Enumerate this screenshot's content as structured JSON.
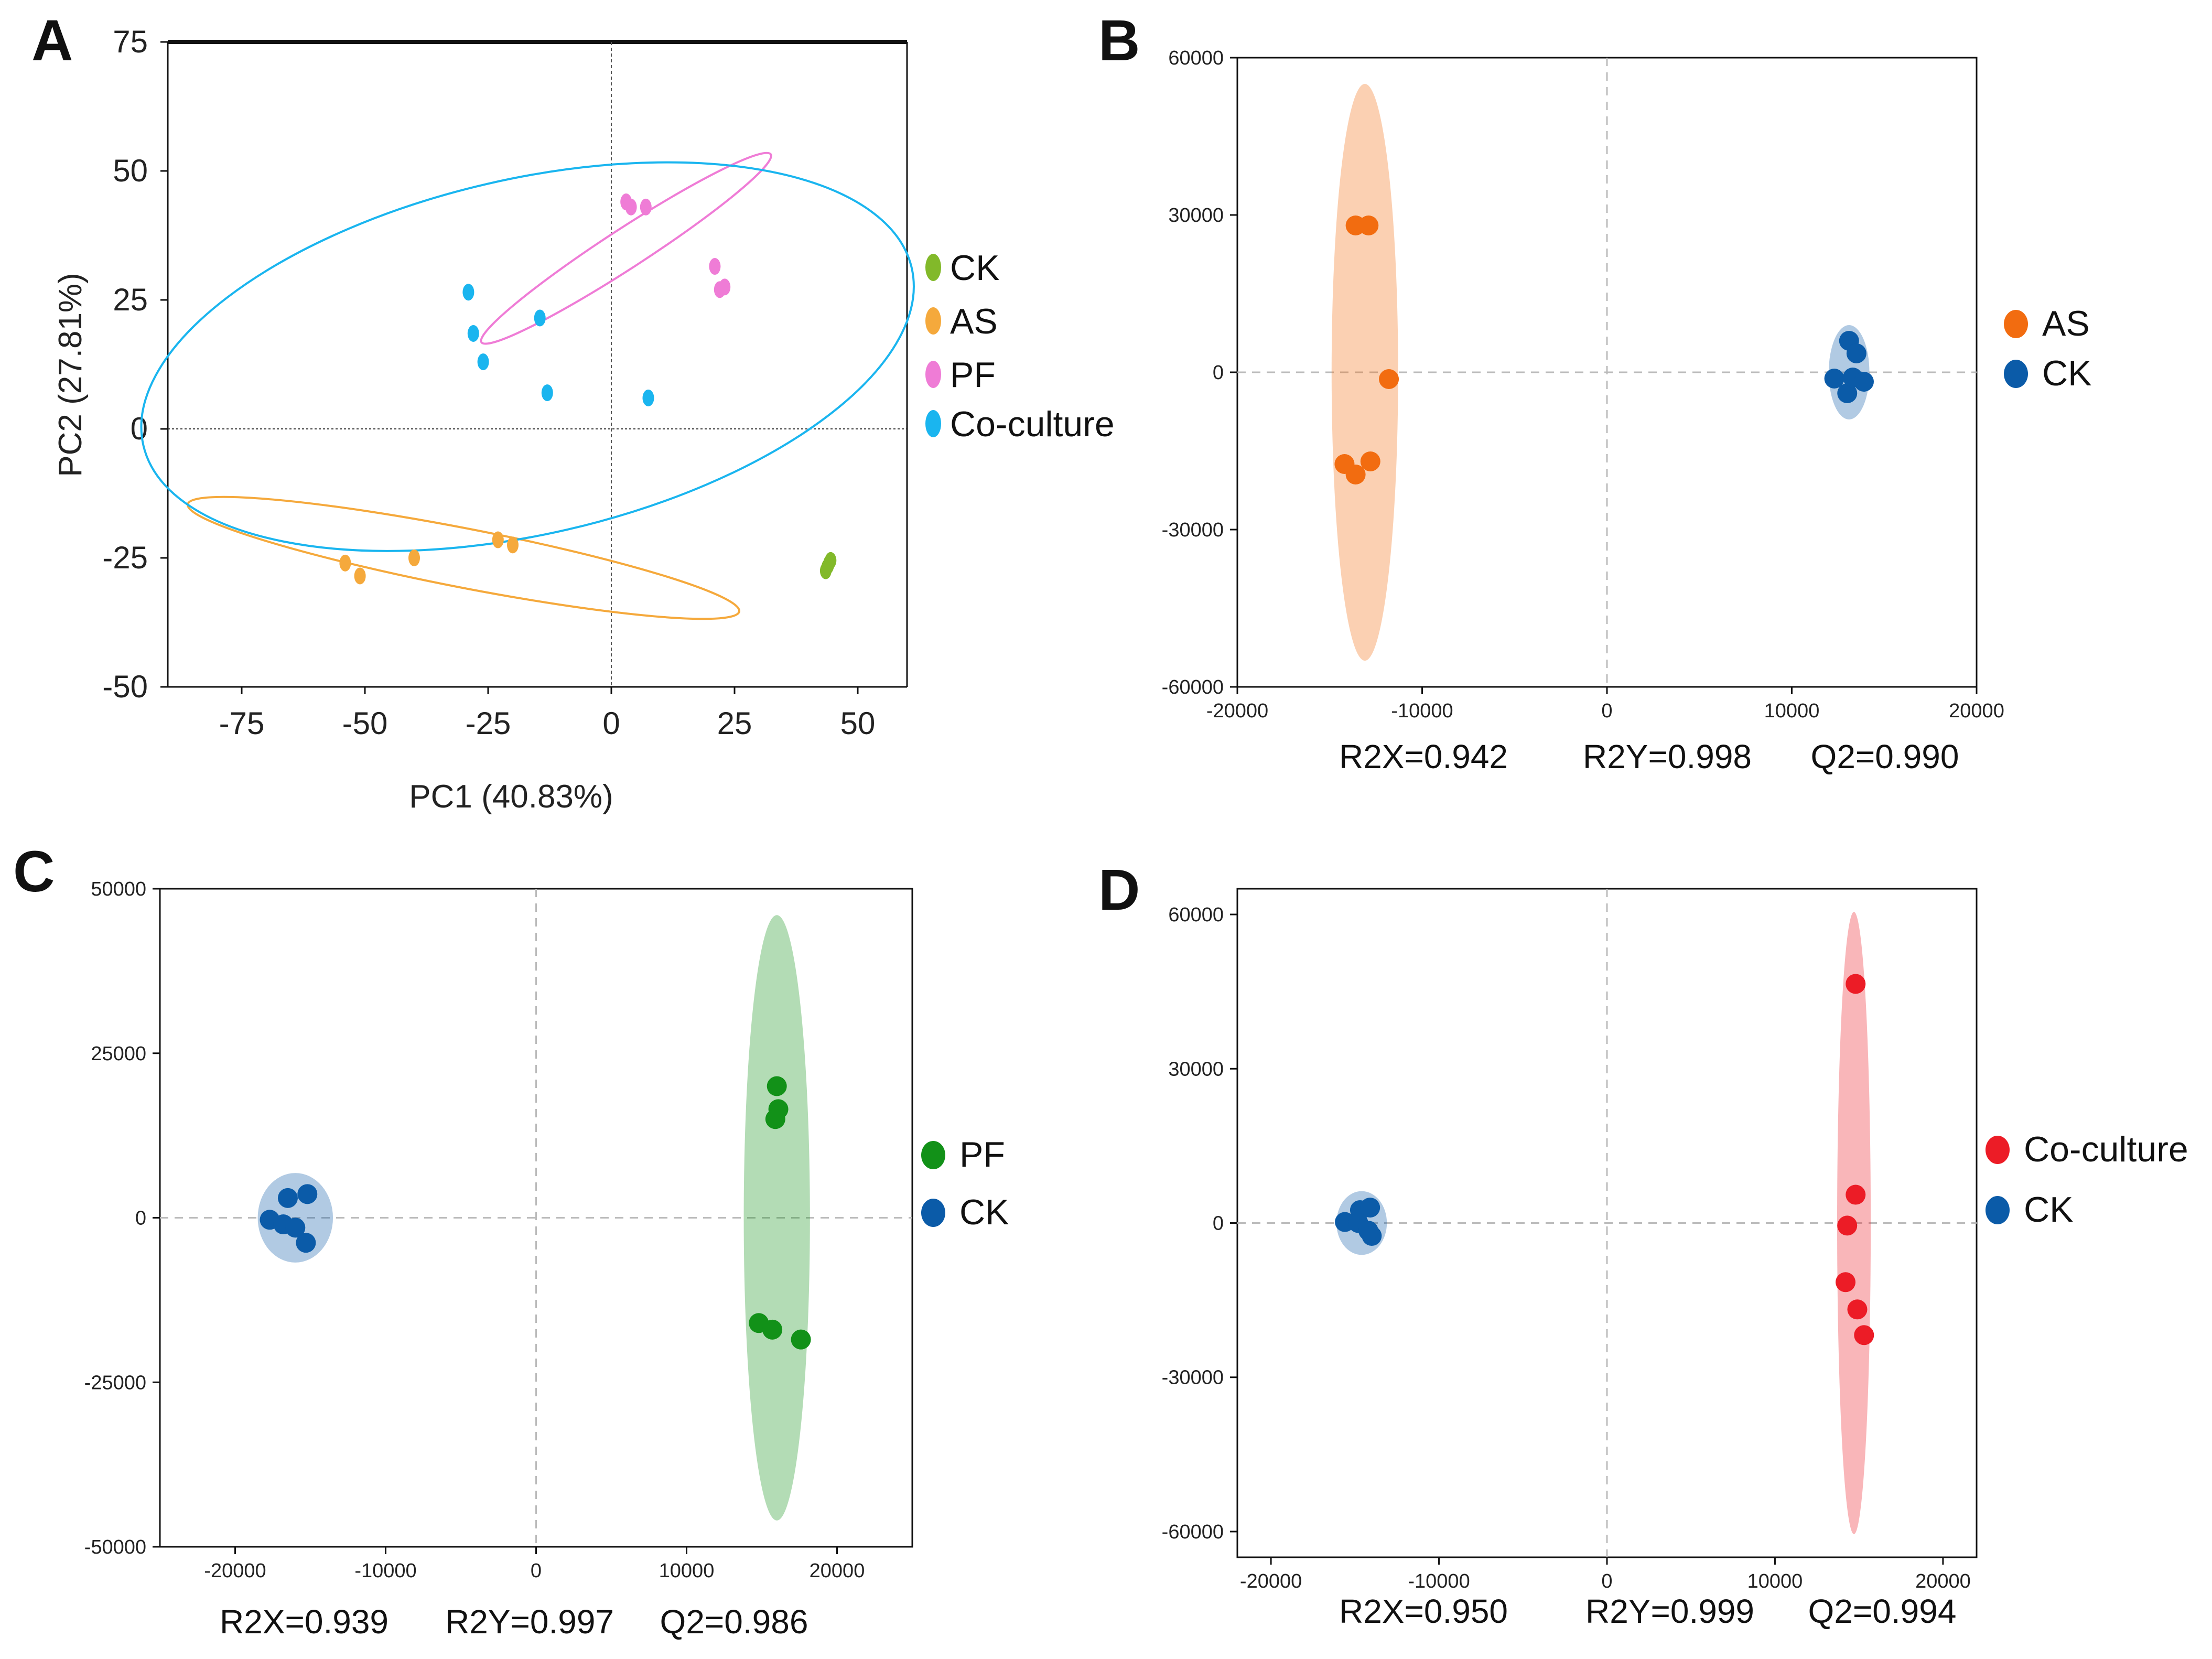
{
  "chart_data": [
    {
      "panel": "A",
      "type": "scatter",
      "xlabel": "PC1 (40.83%)",
      "ylabel": "PC2 (27.81%)",
      "xlim": [
        -90,
        60
      ],
      "ylim": [
        -50,
        75
      ],
      "xticks": [
        -75,
        -50,
        -25,
        0,
        25,
        50
      ],
      "yticks": [
        75,
        50,
        25,
        0,
        -25,
        -50
      ],
      "legend": [
        "CK",
        "AS",
        "PF",
        "Co-culture"
      ],
      "series": [
        {
          "name": "CK",
          "color": "#82b92a",
          "points": [
            [
              43.5,
              -27.5
            ],
            [
              44,
              -26.5
            ],
            [
              44.5,
              -25.5
            ],
            [
              43.8,
              -26.8
            ],
            [
              44.2,
              -26
            ]
          ],
          "ellipse": null
        },
        {
          "name": "AS",
          "color": "#f5a93c",
          "points": [
            [
              -54,
              -26
            ],
            [
              -51,
              -28.5
            ],
            [
              -40,
              -25
            ],
            [
              -23,
              -21.5
            ],
            [
              -20,
              -22.5
            ]
          ],
          "ellipse": {
            "cx": -30,
            "cy": -25,
            "rx": 57,
            "ry": 6,
            "angle_deg": 11
          }
        },
        {
          "name": "PF",
          "color": "#ef7cd6",
          "points": [
            [
              3,
              44
            ],
            [
              4,
              43
            ],
            [
              7,
              43
            ],
            [
              21,
              31.5
            ],
            [
              23,
              27.5
            ],
            [
              22,
              27
            ]
          ],
          "ellipse": {
            "cx": 3,
            "cy": 35,
            "rx": 35,
            "ry": 4,
            "angle_deg": -33
          }
        },
        {
          "name": "Co-culture",
          "color": "#1ab5ef",
          "points": [
            [
              -29,
              26.5
            ],
            [
              -28,
              18.5
            ],
            [
              -26,
              13
            ],
            [
              -14.5,
              21.5
            ],
            [
              -13,
              7
            ],
            [
              7.5,
              6
            ]
          ],
          "ellipse": {
            "cx": -17,
            "cy": 14,
            "rx": 80,
            "ry": 36,
            "angle_deg": -13
          }
        }
      ]
    },
    {
      "panel": "B",
      "type": "scatter",
      "xlim": [
        -20000,
        20000
      ],
      "ylim": [
        -60000,
        60000
      ],
      "xticks": [
        -20000,
        -10000,
        0,
        10000,
        20000
      ],
      "yticks": [
        60000,
        30000,
        0,
        -30000,
        -60000
      ],
      "legend": [
        "AS",
        "CK"
      ],
      "metrics": {
        "r2x": "R2X=0.942",
        "r2y": "R2Y=0.998",
        "q2": "Q2=0.990"
      },
      "series": [
        {
          "name": "AS",
          "color": "#f26c10",
          "points": [
            [
              -13600,
              28000
            ],
            [
              -12900,
              28000
            ],
            [
              -11800,
              -1300
            ],
            [
              -14200,
              -17500
            ],
            [
              -13600,
              -19500
            ],
            [
              -12800,
              -17000
            ]
          ],
          "ellipse": {
            "cx": -13100,
            "cy": 0,
            "rx": 1800,
            "ry": 55000
          }
        },
        {
          "name": "CK",
          "color": "#0b5ba8",
          "points": [
            [
              13100,
              6000
            ],
            [
              13500,
              3600
            ],
            [
              12300,
              -1200
            ],
            [
              13000,
              -4000
            ],
            [
              13300,
              -1000
            ],
            [
              13900,
              -1800
            ]
          ],
          "ellipse": {
            "cx": 13100,
            "cy": 0,
            "rx": 1100,
            "ry": 9000
          }
        }
      ]
    },
    {
      "panel": "C",
      "type": "scatter",
      "xlim": [
        -25000,
        25000
      ],
      "ylim": [
        -50000,
        50000
      ],
      "xticks": [
        -20000,
        -10000,
        0,
        10000,
        20000
      ],
      "yticks": [
        50000,
        25000,
        0,
        -25000,
        -50000
      ],
      "legend": [
        "PF",
        "CK"
      ],
      "metrics": {
        "r2x": "R2X=0.939",
        "r2y": "R2Y=0.997",
        "q2": "Q2=0.986"
      },
      "series": [
        {
          "name": "PF",
          "color": "#129118",
          "points": [
            [
              16000,
              20000
            ],
            [
              16100,
              16500
            ],
            [
              15900,
              15000
            ],
            [
              14800,
              -16000
            ],
            [
              15700,
              -17000
            ],
            [
              17600,
              -18500
            ]
          ],
          "ellipse": {
            "cx": 16000,
            "cy": 0,
            "rx": 2200,
            "ry": 46000
          }
        },
        {
          "name": "CK",
          "color": "#0b5ba8",
          "points": [
            [
              -15200,
              3600
            ],
            [
              -16500,
              3000
            ],
            [
              -17700,
              -300
            ],
            [
              -16800,
              -1000
            ],
            [
              -16000,
              -1500
            ],
            [
              -15300,
              -3800
            ]
          ],
          "ellipse": {
            "cx": -16000,
            "cy": 0,
            "rx": 2500,
            "ry": 6800
          }
        }
      ]
    },
    {
      "panel": "D",
      "type": "scatter",
      "xlim": [
        -22000,
        22000
      ],
      "ylim": [
        -65000,
        65000
      ],
      "xticks": [
        -20000,
        -10000,
        0,
        10000,
        20000
      ],
      "yticks": [
        60000,
        30000,
        0,
        -30000,
        -60000
      ],
      "legend": [
        "Co-culture",
        "CK"
      ],
      "metrics": {
        "r2x": "R2X=0.950",
        "r2y": "R2Y=0.999",
        "q2": "Q2=0.994"
      },
      "series": [
        {
          "name": "Co-culture",
          "color": "#ec1c26",
          "points": [
            [
              14800,
              46500
            ],
            [
              14800,
              5500
            ],
            [
              14300,
              -500
            ],
            [
              14200,
              -11500
            ],
            [
              14900,
              -16800
            ],
            [
              15300,
              -21800
            ]
          ],
          "ellipse": {
            "cx": 14700,
            "cy": 0,
            "rx": 1000,
            "ry": 60500
          }
        },
        {
          "name": "CK",
          "color": "#0b5ba8",
          "points": [
            [
              -14700,
              2500
            ],
            [
              -14100,
              3000
            ],
            [
              -15600,
              200
            ],
            [
              -14800,
              0
            ],
            [
              -14200,
              -1500
            ],
            [
              -14000,
              -2500
            ]
          ],
          "ellipse": {
            "cx": -14600,
            "cy": 0,
            "rx": 1500,
            "ry": 6200
          }
        }
      ]
    }
  ]
}
